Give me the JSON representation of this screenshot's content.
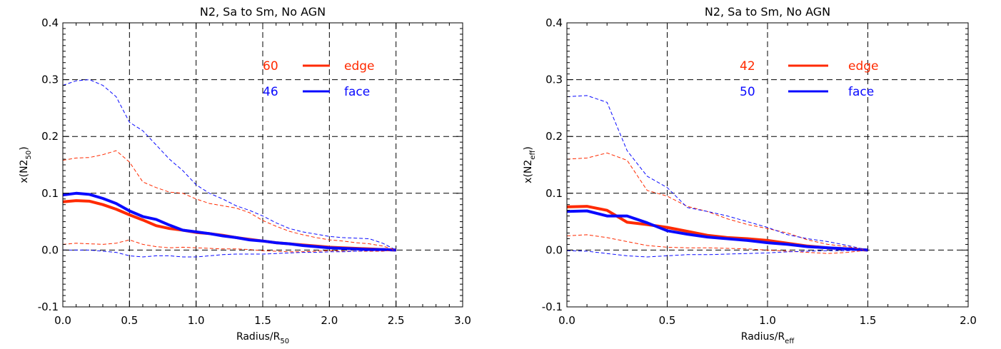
{
  "chart_data": [
    {
      "type": "line",
      "title": "N2, Sa to Sm, No AGN",
      "xlabel": "Radius/R",
      "xlabel_sub": "50",
      "ylabel": "x(N2",
      "ylabel_sub": "50",
      "ylabel_close": ")",
      "xlim": [
        0.0,
        3.0
      ],
      "ylim": [
        -0.1,
        0.4
      ],
      "xticks": [
        "0.0",
        "0.5",
        "1.0",
        "1.5",
        "2.0",
        "2.5",
        "3.0"
      ],
      "yticks": [
        "-0.1",
        "0.0",
        "0.1",
        "0.2",
        "0.3",
        "0.4"
      ],
      "grid": true,
      "legend_position": "top-right",
      "legend": [
        {
          "count": "60",
          "label": "edge",
          "color": "#ff2a00"
        },
        {
          "count": "46",
          "label": "face",
          "color": "#0a0aff"
        }
      ],
      "series": [
        {
          "name": "edge",
          "color": "#ff2a00",
          "style": "solid",
          "x": [
            0,
            0.1,
            0.2,
            0.3,
            0.4,
            0.5,
            0.6,
            0.7,
            0.8,
            0.9,
            1.0,
            1.1,
            1.2,
            1.3,
            1.4,
            1.5,
            1.6,
            1.7,
            1.8,
            1.9,
            2.0,
            2.1,
            2.2,
            2.3,
            2.4,
            2.5
          ],
          "y": [
            0.085,
            0.087,
            0.086,
            0.08,
            0.072,
            0.062,
            0.053,
            0.043,
            0.038,
            0.035,
            0.031,
            0.029,
            0.026,
            0.022,
            0.019,
            0.016,
            0.013,
            0.011,
            0.009,
            0.007,
            0.005,
            0.004,
            0.003,
            0.002,
            0.001,
            0.0
          ]
        },
        {
          "name": "face",
          "color": "#0a0aff",
          "style": "solid",
          "x": [
            0,
            0.1,
            0.2,
            0.3,
            0.4,
            0.5,
            0.6,
            0.7,
            0.8,
            0.9,
            1.0,
            1.1,
            1.2,
            1.3,
            1.4,
            1.5,
            1.6,
            1.7,
            1.8,
            1.9,
            2.0,
            2.1,
            2.2,
            2.3,
            2.4,
            2.5
          ],
          "y": [
            0.097,
            0.1,
            0.098,
            0.091,
            0.082,
            0.069,
            0.059,
            0.054,
            0.044,
            0.035,
            0.032,
            0.029,
            0.025,
            0.022,
            0.018,
            0.016,
            0.013,
            0.011,
            0.008,
            0.006,
            0.004,
            0.003,
            0.002,
            0.001,
            0.001,
            0.0
          ]
        },
        {
          "color": "#ff2a00",
          "style": "dashed",
          "x": [
            0,
            0.1,
            0.2,
            0.3,
            0.4,
            0.5,
            0.6,
            0.7,
            0.8,
            0.9,
            1.0,
            1.1,
            1.2,
            1.3,
            1.4,
            1.5,
            1.6,
            1.7,
            1.8,
            1.9,
            2.0,
            2.1,
            2.2,
            2.3,
            2.4,
            2.5
          ],
          "y": [
            0.158,
            0.162,
            0.163,
            0.168,
            0.175,
            0.155,
            0.12,
            0.11,
            0.102,
            0.1,
            0.09,
            0.082,
            0.078,
            0.074,
            0.066,
            0.052,
            0.042,
            0.033,
            0.027,
            0.022,
            0.018,
            0.016,
            0.013,
            0.011,
            0.007,
            0.0
          ]
        },
        {
          "color": "#0a0aff",
          "style": "dashed",
          "x": [
            0,
            0.1,
            0.2,
            0.3,
            0.4,
            0.5,
            0.6,
            0.7,
            0.8,
            0.9,
            1.0,
            1.1,
            1.2,
            1.3,
            1.4,
            1.5,
            1.6,
            1.7,
            1.8,
            1.9,
            2.0,
            2.1,
            2.2,
            2.3,
            2.4,
            2.5
          ],
          "y": [
            0.29,
            0.298,
            0.3,
            0.29,
            0.27,
            0.225,
            0.21,
            0.185,
            0.16,
            0.14,
            0.115,
            0.1,
            0.09,
            0.078,
            0.07,
            0.06,
            0.048,
            0.038,
            0.032,
            0.028,
            0.024,
            0.022,
            0.021,
            0.02,
            0.012,
            0.0
          ]
        },
        {
          "color": "#ff2a00",
          "style": "dashed",
          "x": [
            0,
            0.1,
            0.2,
            0.3,
            0.4,
            0.5,
            0.6,
            0.7,
            0.8,
            0.9,
            1.0,
            1.1,
            1.2,
            1.3,
            1.4,
            1.5,
            1.6,
            1.7,
            1.8,
            1.9,
            2.0,
            2.1,
            2.2,
            2.3,
            2.4,
            2.5
          ],
          "y": [
            0.01,
            0.012,
            0.011,
            0.01,
            0.012,
            0.018,
            0.01,
            0.006,
            0.004,
            0.005,
            0.004,
            0.003,
            0.002,
            0.002,
            0.001,
            -0.001,
            -0.002,
            -0.003,
            -0.003,
            -0.002,
            -0.001,
            -0.002,
            -0.002,
            -0.002,
            -0.002,
            0.0
          ]
        },
        {
          "color": "#0a0aff",
          "style": "dashed",
          "x": [
            0,
            0.1,
            0.2,
            0.3,
            0.4,
            0.5,
            0.6,
            0.7,
            0.8,
            0.9,
            1.0,
            1.1,
            1.2,
            1.3,
            1.4,
            1.5,
            1.6,
            1.7,
            1.8,
            1.9,
            2.0,
            2.1,
            2.2,
            2.3,
            2.4,
            2.5
          ],
          "y": [
            0.0,
            0.0,
            0.0,
            -0.002,
            -0.004,
            -0.01,
            -0.012,
            -0.01,
            -0.01,
            -0.012,
            -0.012,
            -0.01,
            -0.008,
            -0.007,
            -0.007,
            -0.007,
            -0.006,
            -0.005,
            -0.004,
            -0.004,
            -0.003,
            -0.003,
            -0.002,
            -0.001,
            -0.001,
            0.0
          ]
        }
      ]
    },
    {
      "type": "line",
      "title": "N2, Sa to Sm, No AGN",
      "xlabel": "Radius/R",
      "xlabel_sub": "eff",
      "ylabel": "x(N2",
      "ylabel_sub": "eff",
      "ylabel_close": ")",
      "xlim": [
        0.0,
        2.0
      ],
      "ylim": [
        -0.1,
        0.4
      ],
      "xticks": [
        "0.0",
        "0.5",
        "1.0",
        "1.5",
        "2.0"
      ],
      "yticks": [
        "-0.1",
        "0.0",
        "0.1",
        "0.2",
        "0.3",
        "0.4"
      ],
      "grid": true,
      "legend_position": "top-right",
      "legend": [
        {
          "count": "42",
          "label": "edge",
          "color": "#ff2a00"
        },
        {
          "count": "50",
          "label": "face",
          "color": "#0a0aff"
        }
      ],
      "series": [
        {
          "name": "edge",
          "color": "#ff2a00",
          "style": "solid",
          "x": [
            0,
            0.1,
            0.2,
            0.3,
            0.4,
            0.5,
            0.6,
            0.7,
            0.8,
            0.9,
            1.0,
            1.1,
            1.2,
            1.3,
            1.4,
            1.5
          ],
          "y": [
            0.076,
            0.077,
            0.07,
            0.049,
            0.045,
            0.04,
            0.033,
            0.026,
            0.022,
            0.02,
            0.017,
            0.012,
            0.007,
            0.004,
            0.002,
            0.0
          ]
        },
        {
          "name": "face",
          "color": "#0a0aff",
          "style": "solid",
          "x": [
            0,
            0.1,
            0.2,
            0.3,
            0.4,
            0.5,
            0.6,
            0.7,
            0.8,
            0.9,
            1.0,
            1.1,
            1.2,
            1.3,
            1.4,
            1.5
          ],
          "y": [
            0.068,
            0.069,
            0.06,
            0.06,
            0.048,
            0.034,
            0.028,
            0.023,
            0.02,
            0.017,
            0.013,
            0.01,
            0.006,
            0.004,
            0.002,
            0.0
          ]
        },
        {
          "color": "#ff2a00",
          "style": "dashed",
          "x": [
            0,
            0.1,
            0.2,
            0.3,
            0.4,
            0.5,
            0.6,
            0.7,
            0.8,
            0.9,
            1.0,
            1.1,
            1.2,
            1.3,
            1.4,
            1.5
          ],
          "y": [
            0.16,
            0.162,
            0.171,
            0.158,
            0.105,
            0.095,
            0.077,
            0.068,
            0.055,
            0.045,
            0.038,
            0.03,
            0.018,
            0.01,
            0.006,
            0.0
          ]
        },
        {
          "color": "#0a0aff",
          "style": "dashed",
          "x": [
            0,
            0.1,
            0.2,
            0.3,
            0.4,
            0.5,
            0.6,
            0.7,
            0.8,
            0.9,
            1.0,
            1.1,
            1.2,
            1.3,
            1.4,
            1.5
          ],
          "y": [
            0.27,
            0.272,
            0.26,
            0.175,
            0.13,
            0.11,
            0.075,
            0.068,
            0.06,
            0.05,
            0.04,
            0.027,
            0.02,
            0.015,
            0.008,
            0.0
          ]
        },
        {
          "color": "#ff2a00",
          "style": "dashed",
          "x": [
            0,
            0.1,
            0.2,
            0.3,
            0.4,
            0.5,
            0.6,
            0.7,
            0.8,
            0.9,
            1.0,
            1.1,
            1.2,
            1.3,
            1.4,
            1.5
          ],
          "y": [
            0.025,
            0.027,
            0.022,
            0.015,
            0.008,
            0.005,
            0.004,
            0.004,
            0.003,
            0.002,
            0.0,
            -0.002,
            -0.004,
            -0.006,
            -0.004,
            0.0
          ]
        },
        {
          "color": "#0a0aff",
          "style": "dashed",
          "x": [
            0,
            0.1,
            0.2,
            0.3,
            0.4,
            0.5,
            0.6,
            0.7,
            0.8,
            0.9,
            1.0,
            1.1,
            1.2,
            1.3,
            1.4,
            1.5
          ],
          "y": [
            -0.001,
            -0.002,
            -0.006,
            -0.01,
            -0.012,
            -0.01,
            -0.008,
            -0.008,
            -0.007,
            -0.006,
            -0.005,
            -0.003,
            -0.002,
            -0.001,
            -0.001,
            0.0
          ]
        }
      ]
    }
  ]
}
